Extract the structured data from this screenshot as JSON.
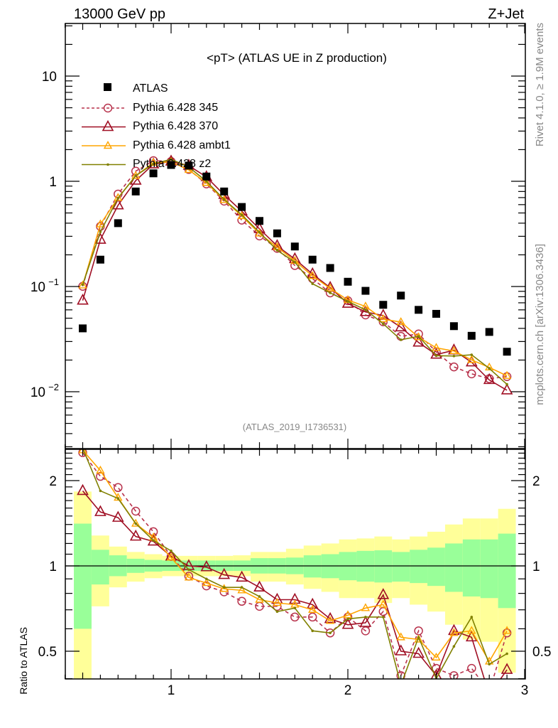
{
  "header": {
    "left": "13000 GeV pp",
    "right": "Z+Jet"
  },
  "side": {
    "rivet": "Rivet 4.1.0, ≥ 1.9M events",
    "mcplots": "mcplots.cern.ch [arXiv:1306.3436]"
  },
  "chart_data": {
    "type": "scatter",
    "title": "<pT> (ATLAS UE in Z production)",
    "analysis_label": "(ATLAS_2019_I1736531)",
    "xlabel": "",
    "ylabel": "",
    "ratio_ylabel": "Ratio to ATLAS",
    "xlim": [
      0.4,
      3.0
    ],
    "ylim": [
      0.003,
      31.6
    ],
    "yscale": "log",
    "ratio_ylim": [
      0.4,
      2.58
    ],
    "ratio_yscale": "log",
    "x_ticks": [
      "1",
      "2",
      "3"
    ],
    "y_ticks": [
      {
        "value": 10,
        "base": "10",
        "exp": ""
      },
      {
        "value": 1,
        "base": "1",
        "exp": ""
      },
      {
        "value": 0.1,
        "base": "10",
        "exp": "−1"
      },
      {
        "value": 0.01,
        "base": "10",
        "exp": "−2"
      }
    ],
    "ratio_ticks": [
      "2",
      "1",
      "0.5"
    ],
    "x": [
      0.5,
      0.6,
      0.7,
      0.8,
      0.9,
      1.0,
      1.1,
      1.2,
      1.3,
      1.4,
      1.5,
      1.6,
      1.7,
      1.8,
      1.9,
      2.0,
      2.1,
      2.2,
      2.3,
      2.4,
      2.5,
      2.6,
      2.7,
      2.8,
      2.9
    ],
    "data": {
      "name": "ATLAS",
      "color": "#000000",
      "values": [
        0.04,
        0.18,
        0.4,
        0.8,
        1.19,
        1.43,
        1.41,
        1.11,
        0.8,
        0.57,
        0.42,
        0.32,
        0.24,
        0.18,
        0.15,
        0.111,
        0.091,
        0.067,
        0.082,
        0.06,
        0.055,
        0.042,
        0.034,
        0.037,
        0.024
      ],
      "band_inner": {
        "upper": [
          1.41,
          1.14,
          1.09,
          1.06,
          1.05,
          1.045,
          1.045,
          1.045,
          1.045,
          1.045,
          1.065,
          1.065,
          1.07,
          1.09,
          1.1,
          1.12,
          1.13,
          1.135,
          1.12,
          1.14,
          1.16,
          1.2,
          1.24,
          1.24,
          1.3
        ],
        "lower": [
          0.6,
          0.86,
          0.92,
          0.945,
          0.955,
          0.96,
          0.96,
          0.96,
          0.96,
          0.96,
          0.94,
          0.94,
          0.935,
          0.91,
          0.905,
          0.89,
          0.88,
          0.874,
          0.88,
          0.87,
          0.85,
          0.81,
          0.78,
          0.77,
          0.71
        ]
      },
      "band_outer": {
        "upper": [
          1.83,
          1.28,
          1.17,
          1.12,
          1.1,
          1.085,
          1.085,
          1.085,
          1.085,
          1.09,
          1.12,
          1.12,
          1.15,
          1.18,
          1.2,
          1.24,
          1.25,
          1.27,
          1.24,
          1.27,
          1.32,
          1.4,
          1.47,
          1.47,
          1.59
        ],
        "lower": [
          0.35,
          0.72,
          0.84,
          0.88,
          0.905,
          0.92,
          0.92,
          0.92,
          0.92,
          0.92,
          0.88,
          0.88,
          0.86,
          0.83,
          0.81,
          0.77,
          0.77,
          0.74,
          0.77,
          0.73,
          0.69,
          0.62,
          0.55,
          0.54,
          0.42
        ]
      },
      "band_colors": {
        "inner": "#99ff99",
        "outer": "#ffff99"
      }
    },
    "series": [
      {
        "name": "Pythia 6.428 345",
        "color": "#b8324c",
        "marker": "circle",
        "dashed": true,
        "ratio": [
          2.51,
          2.07,
          1.89,
          1.56,
          1.32,
          1.08,
          0.92,
          0.85,
          0.81,
          0.75,
          0.72,
          0.72,
          0.66,
          0.66,
          0.58,
          0.66,
          0.59,
          0.69,
          0.41,
          0.59,
          0.435,
          0.41,
          0.435,
          0.36,
          0.58
        ]
      },
      {
        "name": "Pythia 6.428 370",
        "color": "#a00f24",
        "marker": "triangle",
        "dashed": false,
        "ratio": [
          1.84,
          1.55,
          1.48,
          1.27,
          1.22,
          1.08,
          1.0,
          0.99,
          0.93,
          0.91,
          0.84,
          0.76,
          0.76,
          0.73,
          0.65,
          0.62,
          0.63,
          0.79,
          0.5,
          0.49,
          0.41,
          0.59,
          0.56,
          0.35,
          0.43
        ]
      },
      {
        "name": "Pythia 6.428 ambt1",
        "color": "#ffa500",
        "marker": "triangle-small",
        "dashed": false,
        "ratio": [
          2.56,
          2.17,
          1.74,
          1.41,
          1.26,
          1.07,
          0.91,
          0.87,
          0.83,
          0.82,
          0.76,
          0.74,
          0.73,
          0.7,
          0.64,
          0.67,
          0.71,
          0.73,
          0.56,
          0.55,
          0.475,
          0.58,
          0.59,
          0.46,
          0.59
        ]
      },
      {
        "name": "Pythia 6.428 z2",
        "color": "#808000",
        "marker": "dot",
        "dashed": false,
        "ratio": [
          2.6,
          1.84,
          1.73,
          1.41,
          1.23,
          1.13,
          0.97,
          0.9,
          0.84,
          0.84,
          0.78,
          0.69,
          0.71,
          0.59,
          0.58,
          0.65,
          0.66,
          0.66,
          0.38,
          0.56,
          0.4,
          0.52,
          0.66,
          0.45,
          0.49
        ]
      }
    ],
    "legend": "top-left",
    "grid": false
  }
}
